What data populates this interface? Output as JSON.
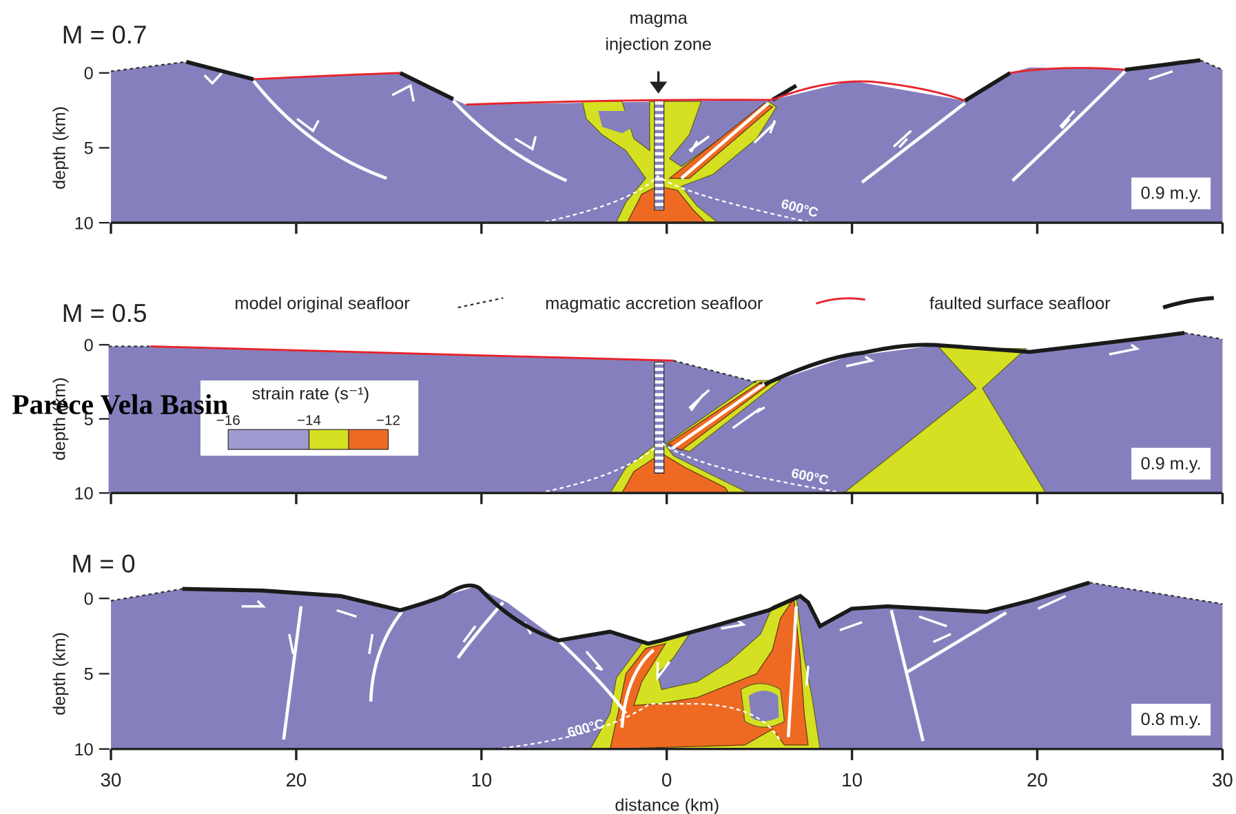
{
  "annotation": "Parece Vela Basin",
  "injection_label": [
    "magma",
    "injection zone"
  ],
  "legend": {
    "items": [
      "model original seafloor",
      "magmatic accretion seafloor",
      "faulted surface seafloor"
    ]
  },
  "strain_rate": {
    "title": "strain rate (s⁻¹)",
    "ticks": [
      "−16",
      "−14",
      "−12"
    ]
  },
  "panels": [
    {
      "label": "M = 0.7",
      "age": "0.9 m.y.",
      "isotherm": "600°C"
    },
    {
      "label": "M = 0.5",
      "age": "0.9 m.y.",
      "isotherm": "600°C"
    },
    {
      "label": "M = 0",
      "age": "0.8 m.y.",
      "isotherm": "600°C"
    }
  ],
  "y_axis": {
    "label": "depth (km)",
    "ticks": [
      0,
      5,
      10
    ]
  },
  "x_axis": {
    "label": "distance (km)",
    "ticks": [
      30,
      20,
      10,
      0,
      10,
      20,
      30
    ]
  }
}
